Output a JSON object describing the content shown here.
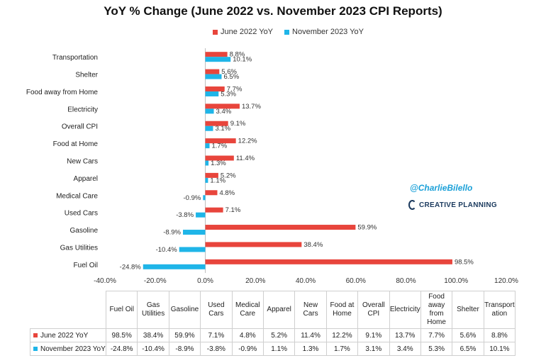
{
  "chart_data": {
    "type": "bar",
    "orientation": "horizontal",
    "title": "YoY % Change (June 2022 vs. November 2023 CPI Reports)",
    "categories": [
      "Transportation",
      "Shelter",
      "Food away from Home",
      "Electricity",
      "Overall CPI",
      "Food at Home",
      "New Cars",
      "Apparel",
      "Medical Care",
      "Used Cars",
      "Gasoline",
      "Gas Utilities",
      "Fuel Oil"
    ],
    "series": [
      {
        "name": "June 2022 YoY",
        "color": "#e8453c",
        "values": [
          8.8,
          5.6,
          7.7,
          13.7,
          9.1,
          12.2,
          11.4,
          5.2,
          4.8,
          7.1,
          59.9,
          38.4,
          98.5
        ],
        "labels": [
          "8.8%",
          "5.6%",
          "7.7%",
          "13.7%",
          "9.1%",
          "12.2%",
          "11.4%",
          "5.2%",
          "4.8%",
          "7.1%",
          "59.9%",
          "38.4%",
          "98.5%"
        ]
      },
      {
        "name": "November 2023 YoY",
        "color": "#1fb5e8",
        "values": [
          10.1,
          6.5,
          5.3,
          3.4,
          3.1,
          1.7,
          1.3,
          1.1,
          -0.9,
          -3.8,
          -8.9,
          -10.4,
          -24.8
        ],
        "labels": [
          "10.1%",
          "6.5%",
          "5.3%",
          "3.4%",
          "3.1%",
          "1.7%",
          "1.3%",
          "1.1%",
          "-0.9%",
          "-3.8%",
          "-8.9%",
          "-10.4%",
          "-24.8%"
        ]
      }
    ],
    "xlim": [
      -40,
      120
    ],
    "xticks": [
      -40,
      -20,
      0,
      20,
      40,
      60,
      80,
      100,
      120
    ],
    "xtick_labels": [
      "-40.0%",
      "-20.0%",
      "0.0%",
      "20.0%",
      "40.0%",
      "60.0%",
      "80.0%",
      "100.0%",
      "120.0%"
    ],
    "legend_position": "top",
    "grid": false
  },
  "annotations": {
    "handle": "@CharlieBilello",
    "logo_text": "CREATIVE PLANNING"
  },
  "data_table": {
    "columns": [
      "Fuel Oil",
      "Gas Utilities",
      "Gasoline",
      "Used Cars",
      "Medical Care",
      "Apparel",
      "New Cars",
      "Food at Home",
      "Overall CPI",
      "Electricity",
      "Food away from Home",
      "Shelter",
      "Transport ation"
    ],
    "rows": [
      {
        "label": "June 2022 YoY",
        "color": "#e8453c",
        "values": [
          "98.5%",
          "38.4%",
          "59.9%",
          "7.1%",
          "4.8%",
          "5.2%",
          "11.4%",
          "12.2%",
          "9.1%",
          "13.7%",
          "7.7%",
          "5.6%",
          "8.8%"
        ]
      },
      {
        "label": "November 2023 YoY",
        "color": "#1fb5e8",
        "values": [
          "-24.8%",
          "-10.4%",
          "-8.9%",
          "-3.8%",
          "-0.9%",
          "1.1%",
          "1.3%",
          "1.7%",
          "3.1%",
          "3.4%",
          "5.3%",
          "6.5%",
          "10.1%"
        ]
      }
    ]
  }
}
